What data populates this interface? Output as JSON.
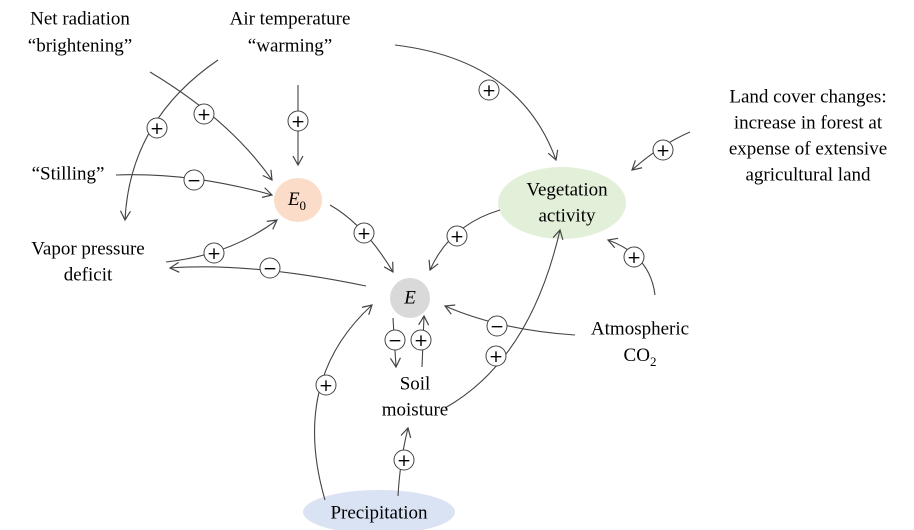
{
  "nodes": [
    {
      "lines": [
        "Net radiation",
        "“brightening”"
      ]
    },
    {
      "lines": [
        "Air temperature",
        "“warming”"
      ]
    },
    {
      "lines": [
        "Land cover changes:",
        "increase in forest at",
        "expense of extensive",
        "agricultural land"
      ]
    },
    {
      "lines": [
        "“Stilling”"
      ]
    },
    {
      "lines": [
        {
          "text": "E",
          "sub": "0"
        }
      ]
    },
    {
      "lines": [
        "Vegetation",
        "activity"
      ]
    },
    {
      "lines": [
        "Vapor pressure",
        "deficit"
      ]
    },
    {
      "lines": [
        "E"
      ]
    },
    {
      "lines": [
        "Atmospheric",
        {
          "text": "CO",
          "sub": "2"
        }
      ]
    },
    {
      "lines": [
        "Soil",
        "moisture"
      ]
    },
    {
      "lines": [
        "Precipitation"
      ]
    }
  ],
  "edges": [
    {
      "sign": "+"
    },
    {
      "sign": "+"
    },
    {
      "sign": "+"
    },
    {
      "sign": "+"
    },
    {
      "sign": "+"
    },
    {
      "sign": "−"
    },
    {
      "sign": "+"
    },
    {
      "sign": "+"
    },
    {
      "sign": "+"
    },
    {
      "sign": "+"
    },
    {
      "sign": "−"
    },
    {
      "sign": "−"
    },
    {
      "sign": "−"
    },
    {
      "sign": "+"
    },
    {
      "sign": "+"
    },
    {
      "sign": "+"
    },
    {
      "sign": "+"
    }
  ]
}
